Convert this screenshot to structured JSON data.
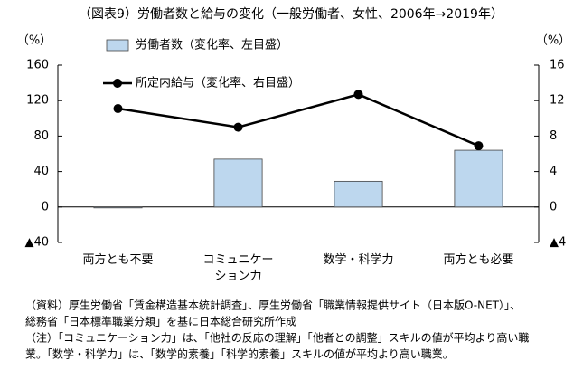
{
  "chart_data": {
    "type": "bar_line",
    "title": "（図表9）労働者数と給与の変化（一般労働者、女性、2006年→2019年）",
    "y_label": "（%）",
    "y2_label": "（%）",
    "categories": [
      "両方とも不要",
      "コミュニケーション力",
      "数学・科学力",
      "両方とも必要"
    ],
    "series": [
      {
        "name": "労働者数（変化率、左目盛）",
        "type": "bar",
        "color": "#bdd7ee",
        "values": [
          -1,
          54,
          29,
          64
        ]
      },
      {
        "name": "所定内給与（変化率、右目盛）",
        "type": "line",
        "axis": "y2",
        "color": "#000000",
        "values": [
          11.1,
          9.0,
          12.7,
          6.9
        ]
      }
    ],
    "ylim": [
      -40,
      160
    ],
    "yticks": [
      {
        "value": -40,
        "label": "▲40"
      },
      0,
      40,
      80,
      120,
      160
    ],
    "y2lim": [
      -4,
      16
    ],
    "y2ticks": [
      {
        "value": -4,
        "label": "▲4"
      },
      0,
      4,
      8,
      12,
      16
    ],
    "legend": "upper left",
    "notes": [
      "（資料）厚生労働省「賃金構造基本統計調査」、厚生労働省「職業情報提供サイト（日本版O-NET）」、",
      "総務省「日本標準職業分類」を基に日本総合研究所作成",
      "（注）「コミュニケーション力」は、「他社の反応の理解」「他者との調整」スキルの値が平均より高い職",
      "業。「数学・科学力」は、「数学的素養」「科学的素養」スキルの値が平均より高い職業。"
    ]
  }
}
